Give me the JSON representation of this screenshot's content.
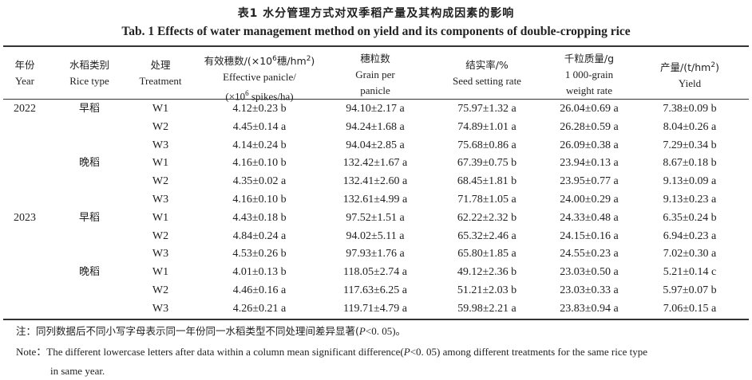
{
  "caption": {
    "cn": "表1   水分管理方式对双季稻产量及其构成因素的影响",
    "en": "Tab. 1    Effects of water management method on yield and its components of double-cropping rice"
  },
  "headers": [
    {
      "key": "year",
      "cn": "年份",
      "en": "Year"
    },
    {
      "key": "rice_type",
      "cn": "水稻类别",
      "en": "Rice type"
    },
    {
      "key": "treatment",
      "cn": "处理",
      "en": "Treatment"
    },
    {
      "key": "panicle",
      "cn_pre": "有效穗数/(×10",
      "cn_sup": "6",
      "cn_post": "穗/hm",
      "cn_sup2": "2",
      "cn_end": ")",
      "en": "Effective panicle/",
      "unit_pre": "(×10",
      "unit_sup": "6",
      "unit_post": " spikes/ha)"
    },
    {
      "key": "grain",
      "cn": "穗粒数",
      "en": "Grain per",
      "en2": "panicle"
    },
    {
      "key": "setting",
      "cn": "结实率/%",
      "en": "Seed setting rate"
    },
    {
      "key": "weight",
      "cn": "千粒质量/g",
      "en": "1 000-grain",
      "en2": "weight rate"
    },
    {
      "key": "yield",
      "cn_pre": "产量/(t/hm",
      "cn_sup": "2",
      "cn_end": ")",
      "en": "Yield"
    }
  ],
  "rows": [
    {
      "year": "2022",
      "type": "早稻",
      "treatment": "W1",
      "panicle": "4.12±0.23 b",
      "grain": "94.10±2.17 a",
      "setting": "75.97±1.32 a",
      "weight": "26.04±0.69 a",
      "yield": "7.38±0.09 b"
    },
    {
      "year": "",
      "type": "",
      "treatment": "W2",
      "panicle": "4.45±0.14 a",
      "grain": "94.24±1.68 a",
      "setting": "74.89±1.01 a",
      "weight": "26.28±0.59 a",
      "yield": "8.04±0.26 a"
    },
    {
      "year": "",
      "type": "",
      "treatment": "W3",
      "panicle": "4.14±0.24 b",
      "grain": "94.04±2.85 a",
      "setting": "75.68±0.86 a",
      "weight": "26.09±0.38 a",
      "yield": "7.29±0.34 b"
    },
    {
      "year": "",
      "type": "晚稻",
      "treatment": "W1",
      "panicle": "4.16±0.10 b",
      "grain": "132.42±1.67 a",
      "setting": "67.39±0.75 b",
      "weight": "23.94±0.13 a",
      "yield": "8.67±0.18 b"
    },
    {
      "year": "",
      "type": "",
      "treatment": "W2",
      "panicle": "4.35±0.02 a",
      "grain": "132.41±2.60 a",
      "setting": "68.45±1.81 b",
      "weight": "23.95±0.77 a",
      "yield": "9.13±0.09 a"
    },
    {
      "year": "",
      "type": "",
      "treatment": "W3",
      "panicle": "4.16±0.10 b",
      "grain": "132.61±4.99 a",
      "setting": "71.78±1.05 a",
      "weight": "24.00±0.29 a",
      "yield": "9.13±0.23 a"
    },
    {
      "year": "2023",
      "type": "早稻",
      "treatment": "W1",
      "panicle": "4.43±0.18 b",
      "grain": "97.52±1.51 a",
      "setting": "62.22±2.32 b",
      "weight": "24.33±0.48 a",
      "yield": "6.35±0.24 b"
    },
    {
      "year": "",
      "type": "",
      "treatment": "W2",
      "panicle": "4.84±0.24 a",
      "grain": "94.02±5.11 a",
      "setting": "65.32±2.46 a",
      "weight": "24.15±0.16 a",
      "yield": "6.94±0.23 a"
    },
    {
      "year": "",
      "type": "",
      "treatment": "W3",
      "panicle": "4.53±0.26 b",
      "grain": "97.93±1.76 a",
      "setting": "65.80±1.85 a",
      "weight": "24.55±0.23 a",
      "yield": "7.02±0.30 a"
    },
    {
      "year": "",
      "type": "晚稻",
      "treatment": "W1",
      "panicle": "4.01±0.13 b",
      "grain": "118.05±2.74 a",
      "setting": "49.12±2.36 b",
      "weight": "23.03±0.50 a",
      "yield": "5.21±0.14 c"
    },
    {
      "year": "",
      "type": "",
      "treatment": "W2",
      "panicle": "4.46±0.16 a",
      "grain": "117.63±6.25 a",
      "setting": "51.21±2.03 b",
      "weight": "23.03±0.33 a",
      "yield": "5.97±0.07 b"
    },
    {
      "year": "",
      "type": "",
      "treatment": "W3",
      "panicle": "4.26±0.21 a",
      "grain": "119.71±4.79 a",
      "setting": "59.98±2.21 a",
      "weight": "23.83±0.94 a",
      "yield": "7.06±0.15 a"
    }
  ],
  "notes": {
    "cn_label": "注：",
    "cn_text_pre": "同列数据后不同小写字母表示同一年份同一水稻类型不同处理间差异显著(",
    "cn_p": "P",
    "cn_text_post": "<0. 05)。",
    "en_label": "Note：",
    "en_text_pre": "The different lowercase letters after data within a column mean significant difference(",
    "en_p": "P",
    "en_text_post": "<0. 05) among different treatments for the same rice type",
    "en_line2": "in same year."
  }
}
